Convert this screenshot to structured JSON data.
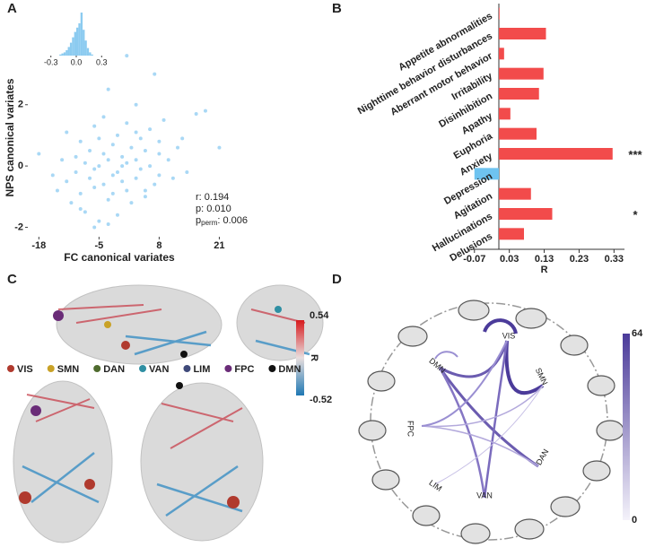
{
  "chart_data": [
    {
      "type": "scatter",
      "panel": "A",
      "xlabel": "FC canonical variates",
      "ylabel": "NPS canonical variates",
      "color": "#a9d8f5",
      "x": [
        -18,
        -15,
        -14,
        -13,
        -12,
        -12,
        -11,
        -10,
        -10,
        -9,
        -9,
        -8,
        -8,
        -7,
        -7,
        -6,
        -6,
        -6,
        -5,
        -5,
        -5,
        -4,
        -4,
        -4,
        -3,
        -3,
        -3,
        -2,
        -2,
        -2,
        -1,
        -1,
        -1,
        0,
        0,
        0,
        1,
        1,
        1,
        2,
        2,
        3,
        3,
        3,
        4,
        4,
        5,
        5,
        6,
        6,
        7,
        7,
        8,
        8,
        9,
        10,
        11,
        12,
        13,
        14,
        16,
        18,
        21,
        1,
        -3,
        5,
        -6,
        3,
        -9,
        8
      ],
      "y": [
        0.4,
        -0.3,
        -0.8,
        0.2,
        -0.5,
        1.1,
        -1.2,
        0.3,
        -0.2,
        0.8,
        -0.9,
        0.1,
        -1.5,
        0.5,
        -0.4,
        1.3,
        -0.1,
        -0.7,
        0.0,
        0.9,
        -1.8,
        0.4,
        -0.6,
        1.6,
        0.2,
        -1.1,
        2.5,
        -0.3,
        0.7,
        -0.9,
        1.0,
        -0.2,
        -1.6,
        0.3,
        0.0,
        -0.5,
        1.4,
        -0.8,
        0.1,
        0.6,
        -1.2,
        0.2,
        2.0,
        -0.4,
        0.9,
        -0.1,
        0.5,
        -1.0,
        1.2,
        0.0,
        3.0,
        -0.6,
        0.8,
        -0.3,
        1.5,
        0.2,
        -0.4,
        0.6,
        0.9,
        -0.2,
        1.7,
        1.8,
        0.6,
        3.6,
        -1.9,
        -0.8,
        -2.0,
        1.1,
        -1.4,
        0.4
      ],
      "xlim": [
        -20,
        24.6
      ],
      "ylim": [
        -2.25,
        4.1
      ],
      "xticks": [
        -18,
        -5,
        8,
        21
      ],
      "yticks": [
        -2,
        0,
        2
      ],
      "annotations": [
        "r: 0.194",
        "p: 0.010"
      ],
      "annotation_perm": {
        "text": "p",
        "sub": "perm",
        "rest": ": 0.006"
      },
      "inset": {
        "type": "histogram",
        "color": "#8ccbf0",
        "bins": [
          -0.2,
          -0.175,
          -0.15,
          -0.125,
          -0.1,
          -0.075,
          -0.05,
          -0.025,
          0,
          0.025,
          0.05,
          0.075,
          0.1,
          0.125,
          0.15,
          0.175,
          0.2
        ],
        "counts": [
          1,
          2,
          3,
          5,
          8,
          12,
          17,
          22,
          26,
          30,
          40,
          24,
          14,
          7,
          3,
          1
        ],
        "xlim": [
          -0.35,
          0.35
        ],
        "xticks": [
          -0.3,
          {
            "value": 0,
            "label": "0.0"
          },
          0.3
        ]
      }
    },
    {
      "type": "bar",
      "panel": "B",
      "orientation": "horizontal",
      "xlabel": "R",
      "categories": [
        "Appetite abnormalities",
        "Nighttime behavior disturbances",
        "Aberrant motor behavior",
        "Irritability",
        "Disinhibition",
        "Apathy",
        "Euphoria",
        "Anxiety",
        "Depression",
        "Agitation",
        "Hallucinations",
        "Delusions"
      ],
      "values": [
        0.002,
        0.135,
        0.015,
        0.128,
        0.115,
        0.033,
        0.108,
        0.326,
        -0.07,
        0.092,
        0.153,
        0.072
      ],
      "colors": [
        "#f24b4b",
        "#f24b4b",
        "#f24b4b",
        "#f24b4b",
        "#f24b4b",
        "#f24b4b",
        "#f24b4b",
        "#f24b4b",
        "#6ec3f0",
        "#f24b4b",
        "#f24b4b",
        "#f24b4b"
      ],
      "significance": [
        null,
        null,
        null,
        null,
        null,
        null,
        null,
        "***",
        null,
        null,
        "*",
        null
      ],
      "xlim": [
        -0.09,
        0.36
      ],
      "xticks": [
        -0.07,
        0.03,
        0.13,
        0.23,
        0.33
      ]
    }
  ],
  "panel_c": {
    "panel": "C",
    "networks": [
      {
        "name": "VIS",
        "color": "#b03a2e"
      },
      {
        "name": "SMN",
        "color": "#c9a227"
      },
      {
        "name": "DAN",
        "color": "#4f6b2e"
      },
      {
        "name": "VAN",
        "color": "#2f8fa3"
      },
      {
        "name": "LIM",
        "color": "#3f4a7a"
      },
      {
        "name": "FPC",
        "color": "#6a2c78"
      },
      {
        "name": "DMN",
        "color": "#111111"
      }
    ],
    "colorbar": {
      "label": "R",
      "ticks": [
        0.54,
        -0.52
      ]
    }
  },
  "panel_d": {
    "panel": "D",
    "networks": [
      {
        "name": "VIS",
        "color": "#d9473b"
      },
      {
        "name": "SMN",
        "color": "#e0a93a"
      },
      {
        "name": "DAN",
        "color": "#5cb85c"
      },
      {
        "name": "VAN",
        "color": "#2aa6b0"
      },
      {
        "name": "LIM",
        "color": "#6c86c2"
      },
      {
        "name": "FPC",
        "color": "#8a7fd1"
      },
      {
        "name": "DMN",
        "color": "#222222"
      }
    ],
    "colorbar": {
      "ticks": [
        64,
        0
      ]
    }
  }
}
